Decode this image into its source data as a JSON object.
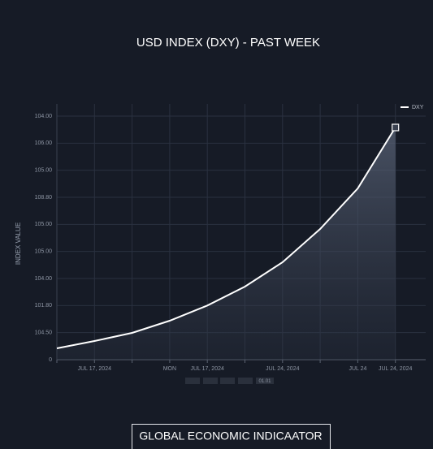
{
  "chart_data": {
    "type": "line",
    "title": "USD INDEX (DXY) - PAST WEEK",
    "y_label": "INDEX VALUE",
    "categories": [
      null,
      "JUL 17, 2024",
      null,
      "MON",
      "JUL 17, 2024",
      null,
      "JUL 24, 2024",
      null,
      "JUL 24",
      "JUL 24, 2024"
    ],
    "series": [
      {
        "name": "DXY",
        "color": "#ffffff",
        "values": [
          0.42,
          0.69,
          0.99,
          1.44,
          2.0,
          2.7,
          3.6,
          4.83,
          6.33,
          8.58
        ]
      }
    ],
    "ylim": [
      0,
      9.45
    ],
    "yticks": [
      0,
      {
        "value": 1,
        "label": "104.50"
      },
      {
        "value": 2,
        "label": "101.80"
      },
      {
        "value": 3,
        "label": "104.00"
      },
      {
        "value": 4,
        "label": "105.00"
      },
      {
        "value": 5,
        "label": "105.00"
      },
      {
        "value": 6,
        "label": "108.80"
      },
      {
        "value": 7,
        "label": "105.00"
      },
      {
        "value": 8,
        "label": "106.00"
      },
      {
        "value": 9,
        "label": "104.00"
      }
    ],
    "grid": true,
    "legend": "top-right",
    "range_label": "01.01",
    "footer_button": "GLOBAL ECONOMIC INDICAATOR"
  }
}
